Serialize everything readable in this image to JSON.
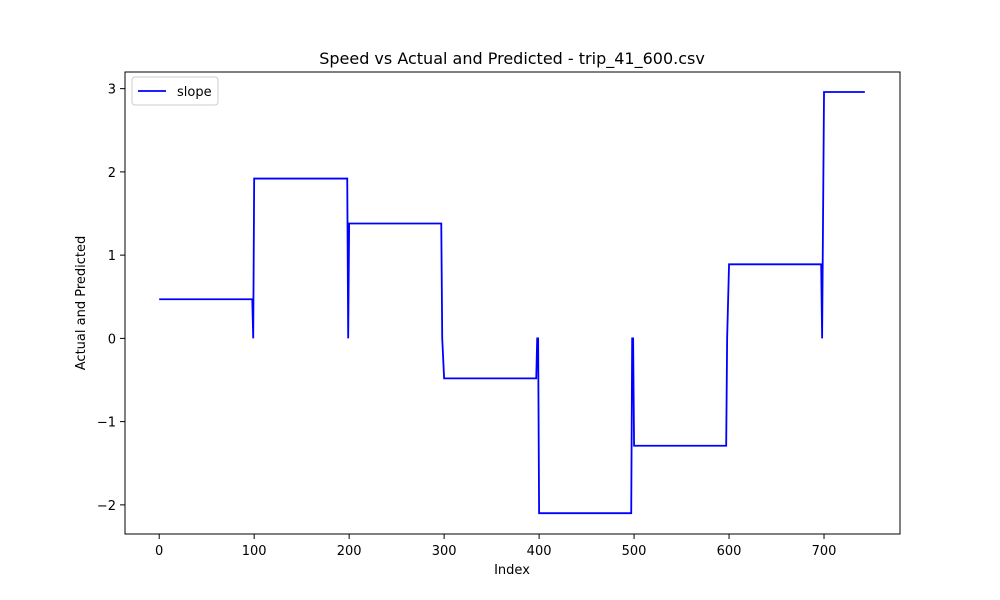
{
  "chart_data": {
    "type": "line",
    "title": "Speed vs Actual and Predicted - trip_41_600.csv",
    "xlabel": "Index",
    "ylabel": "Actual and Predicted",
    "xlim": [
      -36,
      780
    ],
    "ylim": [
      -2.35,
      3.2
    ],
    "x_ticks": [
      0,
      100,
      200,
      300,
      400,
      500,
      600,
      700
    ],
    "x_tick_labels": [
      "0",
      "100",
      "200",
      "300",
      "400",
      "500",
      "600",
      "700"
    ],
    "y_ticks": [
      -2,
      -1,
      0,
      1,
      2,
      3
    ],
    "y_tick_labels": [
      "−2",
      "−1",
      "0",
      "1",
      "2",
      "3"
    ],
    "grid": false,
    "legend": {
      "placement": "top-left"
    },
    "series": [
      {
        "name": "slope",
        "color": "#0000ff",
        "points": [
          [
            0,
            0.47
          ],
          [
            98,
            0.47
          ],
          [
            99,
            0.0
          ],
          [
            100,
            1.92
          ],
          [
            198,
            1.92
          ],
          [
            199,
            0.0
          ],
          [
            200,
            1.38
          ],
          [
            297,
            1.38
          ],
          [
            298,
            0.0
          ],
          [
            300,
            -0.48
          ],
          [
            397,
            -0.48
          ],
          [
            398,
            0.0
          ],
          [
            399,
            0.0
          ],
          [
            400,
            -2.1
          ],
          [
            497,
            -2.1
          ],
          [
            498,
            0.0
          ],
          [
            499,
            0.0
          ],
          [
            500,
            -1.29
          ],
          [
            597,
            -1.29
          ],
          [
            598,
            0.0
          ],
          [
            600,
            0.89
          ],
          [
            697,
            0.89
          ],
          [
            698,
            0.0
          ],
          [
            700,
            2.96
          ],
          [
            743,
            2.96
          ]
        ]
      }
    ]
  }
}
